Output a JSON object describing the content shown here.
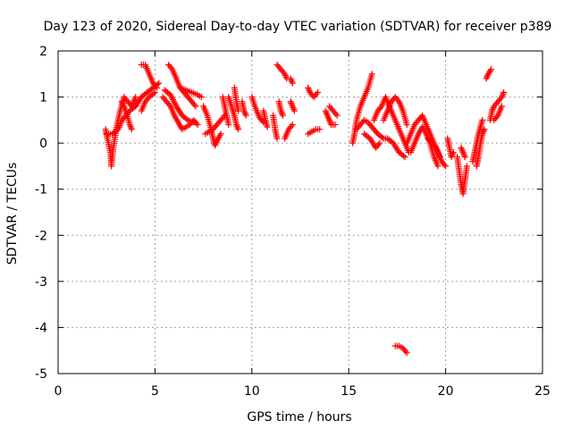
{
  "chart_data": {
    "type": "scatter",
    "title": "Day 123 of 2020, Sidereal Day-to-day VTEC variation (SDTVAR) for receiver p389",
    "xlabel": "GPS time / hours",
    "ylabel": "SDTVAR / TECUs",
    "xlim": [
      0,
      25
    ],
    "ylim": [
      -5,
      2
    ],
    "xticks": [
      0,
      5,
      10,
      15,
      20,
      25
    ],
    "yticks": [
      -5,
      -4,
      -3,
      -2,
      -1,
      0,
      1,
      2
    ],
    "xtick_labels": [
      "0",
      "5",
      "10",
      "15",
      "20",
      "25"
    ],
    "ytick_labels": [
      "-5",
      "-4",
      "-3",
      "-2",
      "-1",
      "0",
      "1",
      "2"
    ],
    "grid": true,
    "marker": "plus",
    "color": "#ff0000",
    "series": [
      {
        "name": "p389",
        "segments": [
          [
            [
              2.45,
              0.3
            ],
            [
              2.55,
              0.1
            ],
            [
              2.7,
              -0.2
            ],
            [
              2.75,
              -0.5
            ],
            [
              2.85,
              -0.1
            ],
            [
              3.0,
              0.3
            ],
            [
              3.2,
              0.7
            ],
            [
              3.4,
              1.0
            ],
            [
              3.6,
              0.9
            ],
            [
              3.8,
              0.8
            ],
            [
              4.0,
              1.0
            ]
          ],
          [
            [
              2.5,
              0.2
            ],
            [
              2.8,
              0.2
            ],
            [
              3.1,
              0.3
            ],
            [
              3.3,
              0.5
            ],
            [
              3.5,
              0.6
            ],
            [
              3.7,
              0.7
            ],
            [
              4.0,
              0.8
            ]
          ],
          [
            [
              3.3,
              0.9
            ],
            [
              3.5,
              0.7
            ],
            [
              3.7,
              0.4
            ],
            [
              3.8,
              0.3
            ]
          ],
          [
            [
              4.0,
              0.8
            ],
            [
              4.3,
              1.0
            ],
            [
              4.6,
              1.1
            ],
            [
              4.9,
              1.2
            ],
            [
              5.2,
              1.3
            ]
          ],
          [
            [
              4.3,
              1.7
            ],
            [
              4.5,
              1.7
            ],
            [
              4.7,
              1.5
            ],
            [
              4.9,
              1.3
            ],
            [
              5.1,
              1.2
            ]
          ],
          [
            [
              4.3,
              0.7
            ],
            [
              4.5,
              0.9
            ],
            [
              4.7,
              1.0
            ],
            [
              5.0,
              1.1
            ]
          ],
          [
            [
              5.7,
              1.7
            ],
            [
              5.9,
              1.6
            ],
            [
              6.1,
              1.4
            ],
            [
              6.3,
              1.2
            ],
            [
              6.5,
              1.1
            ],
            [
              6.7,
              1.0
            ],
            [
              6.9,
              0.9
            ],
            [
              7.1,
              0.8
            ]
          ],
          [
            [
              5.4,
              1.0
            ],
            [
              5.6,
              0.9
            ],
            [
              5.8,
              0.8
            ],
            [
              6.0,
              0.6
            ],
            [
              6.2,
              0.45
            ],
            [
              6.4,
              0.3
            ],
            [
              6.6,
              0.35
            ],
            [
              6.8,
              0.4
            ],
            [
              7.0,
              0.5
            ],
            [
              7.2,
              0.4
            ]
          ],
          [
            [
              5.5,
              1.15
            ],
            [
              5.8,
              1.05
            ],
            [
              6.1,
              0.8
            ],
            [
              6.4,
              0.6
            ],
            [
              6.7,
              0.5
            ],
            [
              7.0,
              0.45
            ]
          ],
          [
            [
              6.3,
              1.2
            ],
            [
              6.6,
              1.15
            ],
            [
              6.9,
              1.1
            ],
            [
              7.2,
              1.05
            ],
            [
              7.4,
              1.0
            ]
          ],
          [
            [
              7.5,
              0.8
            ],
            [
              7.7,
              0.6
            ],
            [
              7.9,
              0.3
            ],
            [
              8.0,
              0.1
            ],
            [
              8.1,
              -0.05
            ],
            [
              8.2,
              0.05
            ],
            [
              8.4,
              0.2
            ]
          ],
          [
            [
              7.6,
              0.2
            ],
            [
              7.8,
              0.25
            ],
            [
              8.0,
              0.3
            ],
            [
              8.2,
              0.4
            ],
            [
              8.4,
              0.5
            ],
            [
              8.6,
              0.6
            ]
          ],
          [
            [
              8.5,
              1.0
            ],
            [
              8.6,
              0.8
            ],
            [
              8.7,
              0.6
            ],
            [
              8.8,
              0.4
            ]
          ],
          [
            [
              8.8,
              1.0
            ],
            [
              8.95,
              0.8
            ],
            [
              9.1,
              0.6
            ],
            [
              9.2,
              0.4
            ],
            [
              9.3,
              0.3
            ]
          ],
          [
            [
              9.1,
              1.2
            ],
            [
              9.2,
              0.9
            ],
            [
              9.3,
              0.7
            ]
          ],
          [
            [
              9.5,
              0.9
            ],
            [
              9.6,
              0.7
            ],
            [
              9.7,
              0.6
            ]
          ],
          [
            [
              10.0,
              1.0
            ],
            [
              10.2,
              0.75
            ],
            [
              10.4,
              0.55
            ],
            [
              10.6,
              0.45
            ]
          ],
          [
            [
              10.6,
              0.7
            ],
            [
              10.7,
              0.5
            ],
            [
              10.8,
              0.35
            ]
          ],
          [
            [
              11.3,
              1.7
            ],
            [
              11.5,
              1.6
            ],
            [
              11.7,
              1.5
            ],
            [
              11.8,
              1.4
            ]
          ],
          [
            [
              11.1,
              0.6
            ],
            [
              11.2,
              0.3
            ],
            [
              11.3,
              0.1
            ]
          ],
          [
            [
              11.4,
              0.9
            ],
            [
              11.5,
              0.7
            ],
            [
              11.6,
              0.6
            ]
          ],
          [
            [
              11.7,
              0.1
            ],
            [
              11.9,
              0.3
            ],
            [
              12.1,
              0.4
            ]
          ],
          [
            [
              12.0,
              1.4
            ],
            [
              12.1,
              1.3
            ]
          ],
          [
            [
              12.0,
              0.9
            ],
            [
              12.1,
              0.8
            ],
            [
              12.2,
              0.7
            ]
          ],
          [
            [
              12.9,
              1.2
            ],
            [
              13.0,
              1.1
            ],
            [
              13.2,
              1.0
            ],
            [
              13.4,
              1.1
            ]
          ],
          [
            [
              12.9,
              0.2
            ],
            [
              13.1,
              0.25
            ],
            [
              13.3,
              0.3
            ],
            [
              13.5,
              0.3
            ]
          ],
          [
            [
              13.8,
              0.7
            ],
            [
              13.9,
              0.6
            ],
            [
              14.0,
              0.5
            ],
            [
              14.1,
              0.4
            ],
            [
              14.3,
              0.4
            ]
          ],
          [
            [
              14.0,
              0.8
            ],
            [
              14.2,
              0.7
            ],
            [
              14.4,
              0.6
            ]
          ],
          [
            [
              15.2,
              0.0
            ],
            [
              15.3,
              0.2
            ],
            [
              15.4,
              0.5
            ],
            [
              15.6,
              0.8
            ],
            [
              15.8,
              1.0
            ],
            [
              16.0,
              1.2
            ],
            [
              16.2,
              1.5
            ]
          ],
          [
            [
              15.4,
              0.3
            ],
            [
              15.6,
              0.4
            ],
            [
              15.8,
              0.5
            ],
            [
              16.0,
              0.45
            ],
            [
              16.2,
              0.35
            ],
            [
              16.5,
              0.2
            ],
            [
              16.8,
              0.1
            ],
            [
              17.0,
              0.1
            ],
            [
              17.3,
              0.0
            ],
            [
              17.6,
              -0.2
            ],
            [
              17.9,
              -0.3
            ]
          ],
          [
            [
              15.8,
              0.2
            ],
            [
              16.1,
              0.1
            ],
            [
              16.4,
              -0.1
            ],
            [
              16.6,
              0.0
            ]
          ],
          [
            [
              16.3,
              0.5
            ],
            [
              16.5,
              0.7
            ],
            [
              16.7,
              0.8
            ],
            [
              16.9,
              1.0
            ],
            [
              17.1,
              0.8
            ],
            [
              17.3,
              0.6
            ],
            [
              17.5,
              0.4
            ],
            [
              17.7,
              0.2
            ],
            [
              17.9,
              0.0
            ],
            [
              18.1,
              -0.2
            ]
          ],
          [
            [
              16.8,
              0.5
            ],
            [
              17.0,
              0.7
            ],
            [
              17.2,
              0.9
            ],
            [
              17.4,
              1.0
            ],
            [
              17.6,
              0.9
            ],
            [
              17.8,
              0.7
            ],
            [
              18.0,
              0.4
            ]
          ],
          [
            [
              18.0,
              0.0
            ],
            [
              18.2,
              0.2
            ],
            [
              18.4,
              0.4
            ],
            [
              18.6,
              0.5
            ],
            [
              18.8,
              0.6
            ],
            [
              19.0,
              0.4
            ],
            [
              19.2,
              0.2
            ],
            [
              19.4,
              0.0
            ],
            [
              19.6,
              -0.2
            ],
            [
              19.8,
              -0.4
            ],
            [
              20.0,
              -0.5
            ]
          ],
          [
            [
              18.2,
              -0.2
            ],
            [
              18.4,
              0.0
            ],
            [
              18.6,
              0.2
            ],
            [
              18.8,
              0.35
            ],
            [
              19.0,
              0.2
            ],
            [
              19.2,
              0.0
            ],
            [
              19.4,
              -0.3
            ],
            [
              19.6,
              -0.5
            ]
          ],
          [
            [
              17.4,
              -4.4
            ],
            [
              17.6,
              -4.4
            ],
            [
              17.8,
              -4.45
            ],
            [
              18.0,
              -4.55
            ]
          ],
          [
            [
              19.1,
              0.1
            ],
            [
              19.3,
              0.0
            ],
            [
              19.5,
              -0.1
            ],
            [
              19.7,
              -0.3
            ]
          ],
          [
            [
              20.1,
              0.1
            ],
            [
              20.2,
              -0.1
            ],
            [
              20.3,
              -0.3
            ],
            [
              20.4,
              -0.2
            ]
          ],
          [
            [
              20.6,
              -0.3
            ],
            [
              20.7,
              -0.6
            ],
            [
              20.8,
              -0.9
            ],
            [
              20.9,
              -1.1
            ],
            [
              21.0,
              -0.8
            ],
            [
              21.1,
              -0.5
            ]
          ],
          [
            [
              20.8,
              -0.1
            ],
            [
              20.9,
              -0.2
            ],
            [
              21.0,
              -0.3
            ]
          ],
          [
            [
              21.4,
              -0.4
            ],
            [
              21.5,
              -0.2
            ],
            [
              21.6,
              0.0
            ],
            [
              21.7,
              0.2
            ],
            [
              21.8,
              0.35
            ],
            [
              21.9,
              0.5
            ]
          ],
          [
            [
              21.6,
              -0.5
            ],
            [
              21.7,
              -0.3
            ],
            [
              21.8,
              0.0
            ],
            [
              21.9,
              0.2
            ],
            [
              22.0,
              0.3
            ]
          ],
          [
            [
              22.1,
              1.4
            ],
            [
              22.2,
              1.5
            ],
            [
              22.35,
              1.6
            ]
          ],
          [
            [
              22.3,
              0.5
            ],
            [
              22.4,
              0.7
            ],
            [
              22.5,
              0.8
            ],
            [
              22.7,
              0.9
            ],
            [
              22.9,
              1.0
            ],
            [
              23.0,
              1.1
            ]
          ],
          [
            [
              22.5,
              0.5
            ],
            [
              22.7,
              0.6
            ],
            [
              22.9,
              0.8
            ]
          ]
        ]
      }
    ]
  }
}
